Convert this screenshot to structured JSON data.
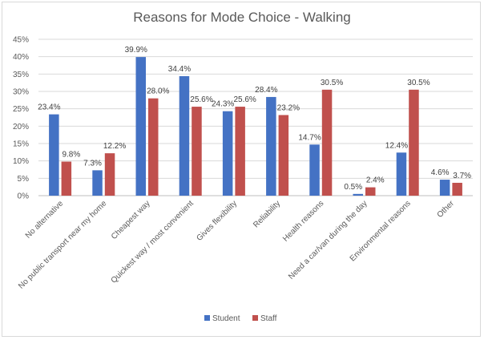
{
  "chart_data": {
    "type": "bar",
    "title": "Reasons for Mode Choice - Walking",
    "categories": [
      "No alternative",
      "No public transport near my home",
      "Cheapest way",
      "Quickest way / most convenient",
      "Gives flexibility",
      "Reliability",
      "Health reasons",
      "Need a car/van during the day",
      "Environmental reasons",
      "Other"
    ],
    "series": [
      {
        "name": "Student",
        "color": "#4472c4",
        "values": [
          23.4,
          7.3,
          39.9,
          34.4,
          24.3,
          28.4,
          14.7,
          0.5,
          12.4,
          4.6
        ],
        "labels": [
          "23.4%",
          "7.3%",
          "39.9%",
          "34.4%",
          "24.3%",
          "28.4%",
          "14.7%",
          "0.5%",
          "12.4%",
          "4.6%"
        ]
      },
      {
        "name": "Staff",
        "color": "#c0504d",
        "values": [
          9.8,
          12.2,
          28.0,
          25.6,
          25.6,
          23.2,
          30.5,
          2.4,
          30.5,
          3.7
        ],
        "labels": [
          "9.8%",
          "12.2%",
          "28.0%",
          "25.6%",
          "25.6%",
          "23.2%",
          "30.5%",
          "2.4%",
          "30.5%",
          "3.7%"
        ]
      }
    ],
    "yticks": [
      "0%",
      "5%",
      "10%",
      "15%",
      "20%",
      "25%",
      "30%",
      "35%",
      "40%",
      "45%"
    ],
    "ylim": [
      0,
      45
    ],
    "grid": true,
    "legend": "bottom"
  }
}
